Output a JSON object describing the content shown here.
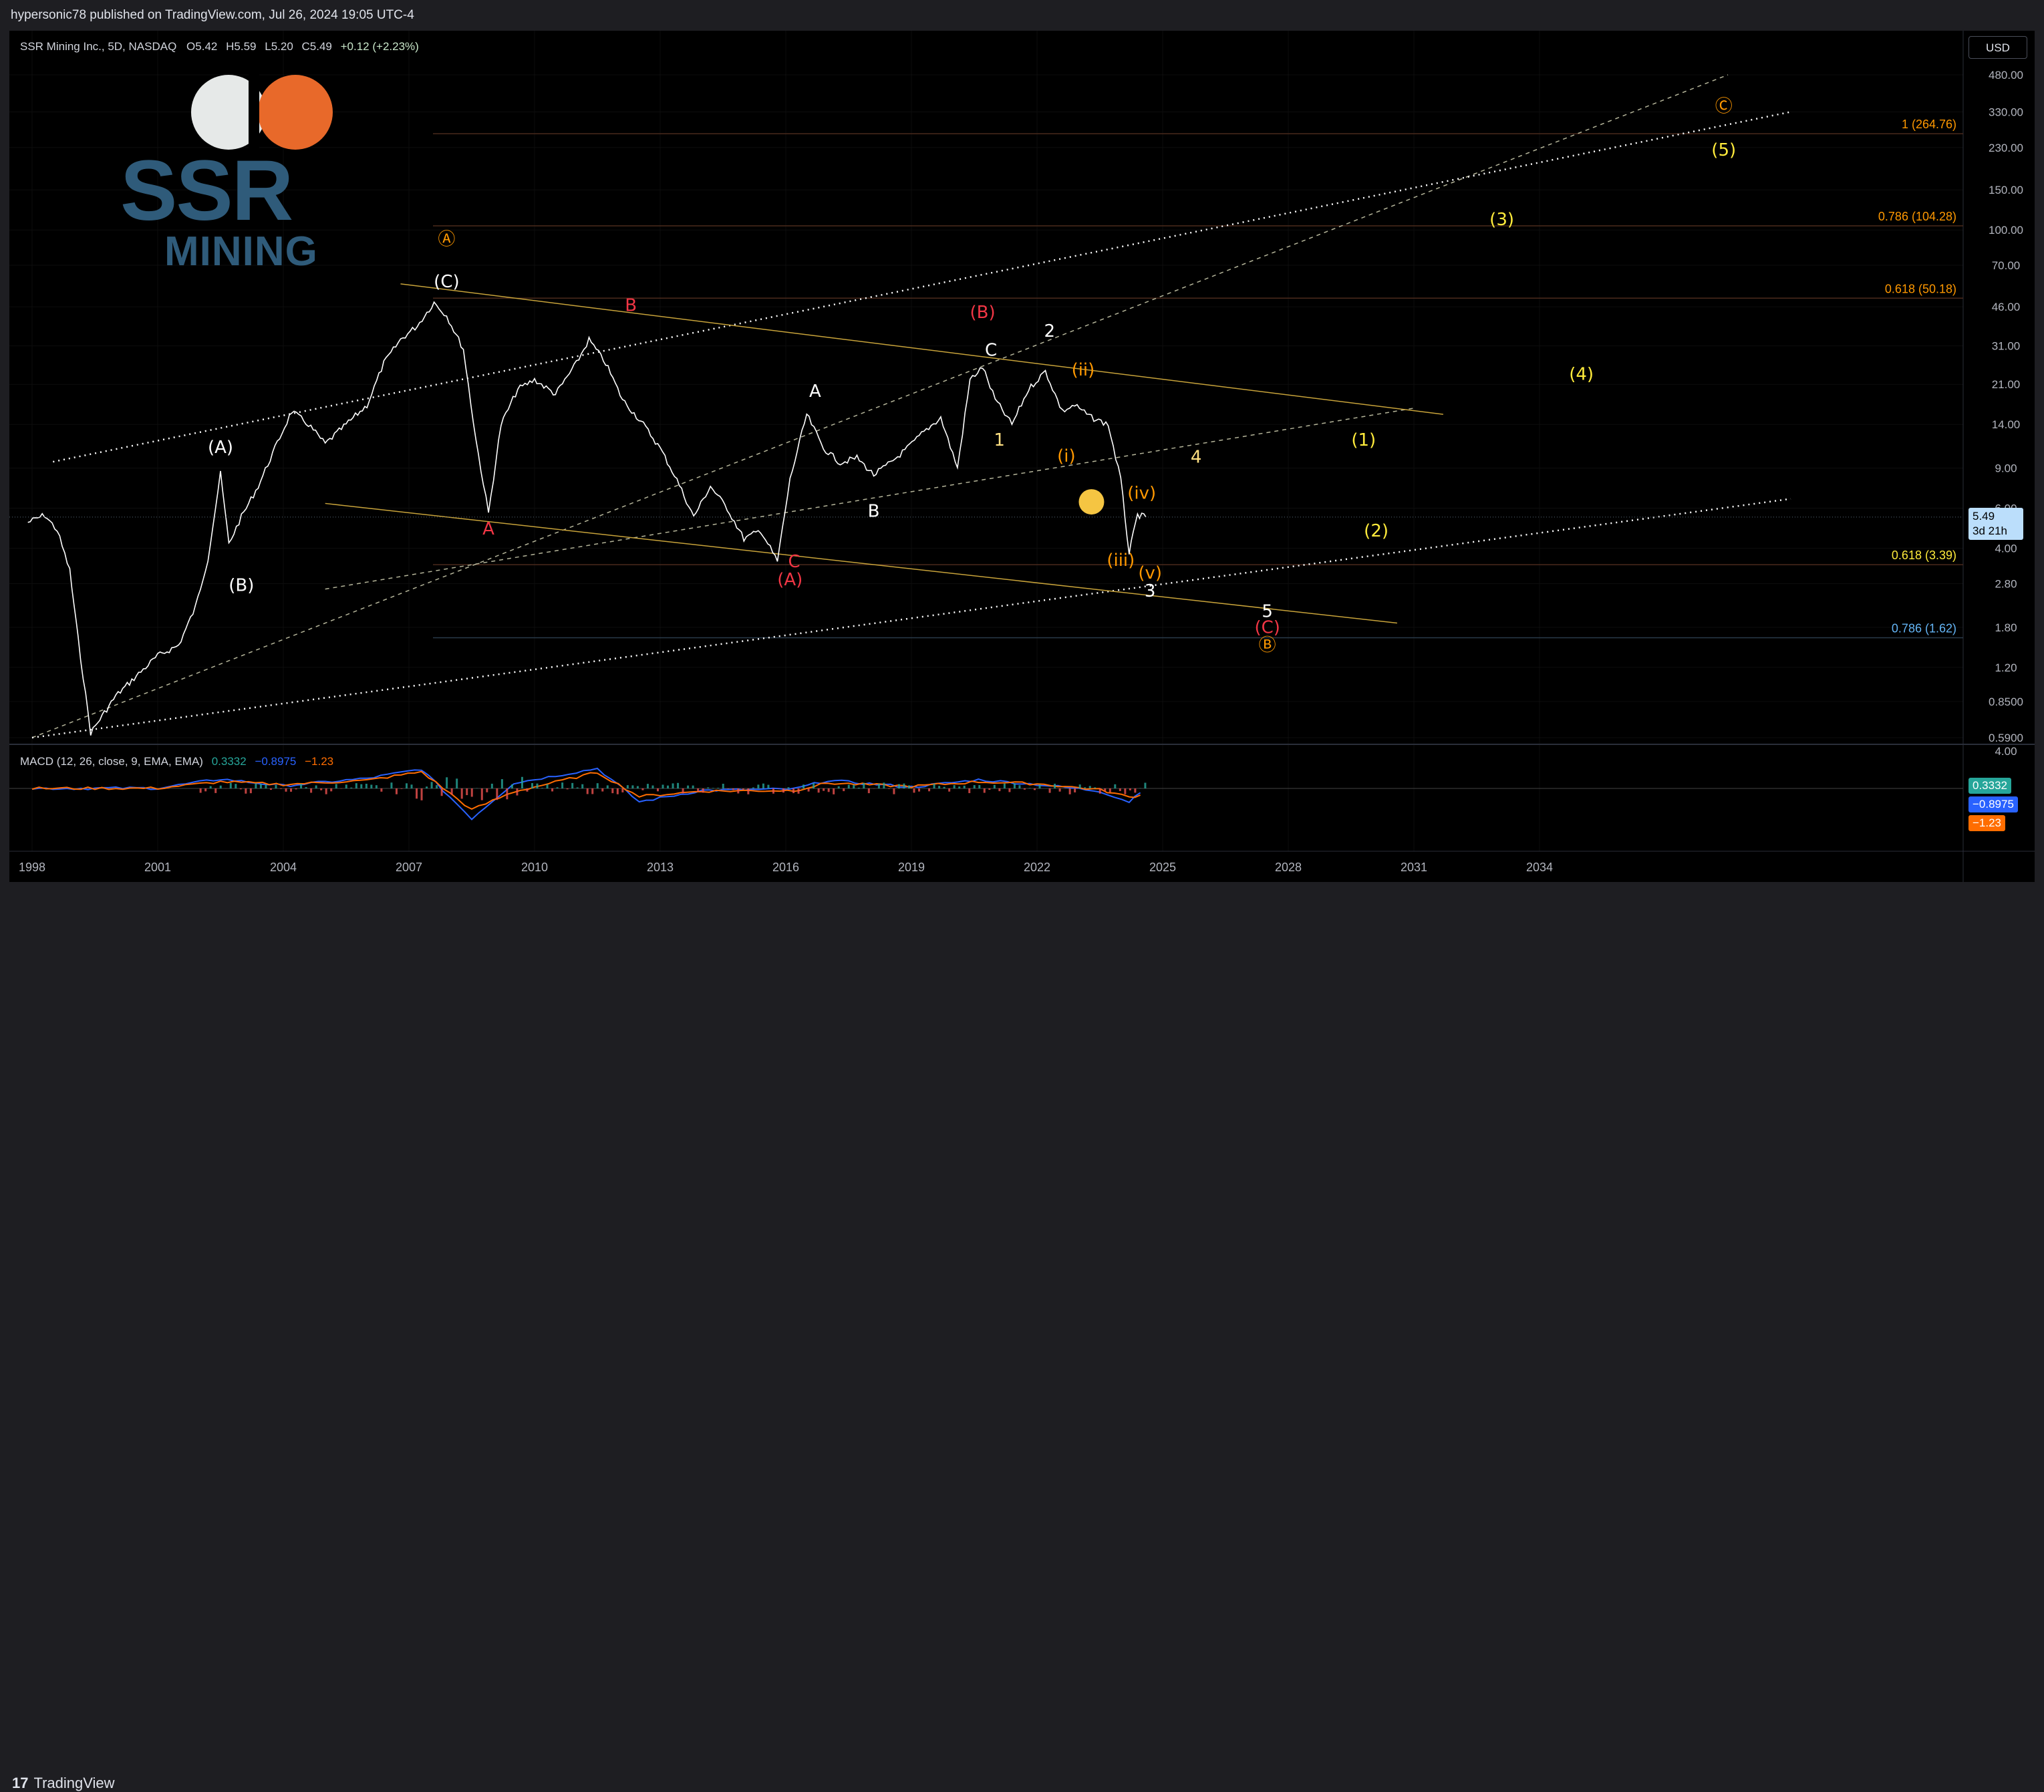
{
  "publisher_line": "hypersonic78 published on TradingView.com, Jul 26, 2024 19:05 UTC-4",
  "footer_brand": "TradingView",
  "logo": {
    "ssr": "SSR",
    "mining": "MINING"
  },
  "currency_button": "USD",
  "legend": {
    "symbol": "SSR Mining Inc., 5D, NASDAQ",
    "o_label": "O",
    "o": "5.42",
    "h_label": "H",
    "h": "5.59",
    "l_label": "L",
    "l": "5.20",
    "c_label": "C",
    "c": "5.49",
    "change": "+0.12 (+2.23%)"
  },
  "macd_legend": {
    "name": "MACD (12, 26, close, 9, EMA, EMA)",
    "v1": "0.3332",
    "v2": "−0.8975",
    "v3": "−1.23"
  },
  "price_badge": {
    "price": "5.49",
    "countdown": "3d 21h"
  },
  "macd_badges": [
    "0.3332",
    "−0.8975",
    "−1.23"
  ],
  "colors": {
    "bg": "#000000",
    "price": "#ffffff",
    "yellow": "#ffeb3b",
    "orange": "#ff9800",
    "red": "#f23645",
    "fib_blue": "#64b5f6",
    "channel": "#c8a33a"
  },
  "chart_data": [
    {
      "type": "line",
      "scale": "log",
      "title": "SSR Mining Inc., 5D, NASDAQ",
      "x_ticks": [
        "1998",
        "2001",
        "2004",
        "2007",
        "2010",
        "2013",
        "2016",
        "2019",
        "2022",
        "2025",
        "2028",
        "2031",
        "2034"
      ],
      "y_ticks": [
        "480.00",
        "330.00",
        "230.00",
        "150.00",
        "100.00",
        "70.00",
        "46.00",
        "31.00",
        "21.00",
        "14.00",
        "9.00",
        "6.00",
        "4.00",
        "2.80",
        "1.80",
        "1.20",
        "0.8500",
        "0.5900"
      ],
      "ylim": [
        0.55,
        560
      ],
      "series": [
        {
          "name": "SSR Mining Inc., 5D, NASDAQ",
          "x": [
            1997.9,
            1998.3,
            1998.6,
            1998.9,
            1999.1,
            1999.4,
            2000.0,
            2000.6,
            2001.0,
            2001.5,
            2001.9,
            2002.2,
            2002.5,
            2002.7,
            2003.0,
            2003.4,
            2003.8,
            2004.2,
            2004.6,
            2005.0,
            2005.5,
            2006.0,
            2006.4,
            2006.8,
            2007.2,
            2007.6,
            2007.9,
            2008.3,
            2008.6,
            2008.9,
            2009.2,
            2009.6,
            2010.0,
            2010.5,
            2011.0,
            2011.3,
            2011.7,
            2012.1,
            2012.6,
            2013.0,
            2013.4,
            2013.8,
            2014.2,
            2014.6,
            2015.0,
            2015.4,
            2015.8,
            2016.1,
            2016.5,
            2016.9,
            2017.3,
            2017.7,
            2018.1,
            2018.5,
            2018.9,
            2019.3,
            2019.7,
            2020.1,
            2020.4,
            2020.7,
            2021.0,
            2021.4,
            2021.8,
            2022.2,
            2022.6,
            2022.9,
            2023.3,
            2023.7,
            2024.0,
            2024.2,
            2024.4,
            2024.6
          ],
          "values": [
            5.2,
            5.6,
            4.8,
            3.2,
            1.6,
            0.62,
            0.9,
            1.15,
            1.35,
            1.5,
            2.2,
            3.6,
            8.5,
            4.2,
            5.5,
            7.5,
            11,
            16,
            14,
            11.5,
            14,
            17,
            26,
            33,
            38,
            48,
            42,
            30,
            12,
            5.7,
            14,
            20,
            22,
            19,
            26,
            33,
            26,
            18,
            14,
            11,
            8,
            5.5,
            7.5,
            6,
            4.4,
            4.8,
            3.5,
            8,
            15.5,
            11,
            9.5,
            10,
            8.4,
            9.5,
            11,
            13,
            15,
            9,
            22,
            25,
            18,
            14,
            20,
            24,
            16,
            17,
            15,
            14,
            8,
            3.8,
            5.6,
            5.49
          ]
        }
      ],
      "wave_labels": [
        {
          "text": "(A)",
          "color": "#ffffff",
          "x": 2002.5,
          "y": 10.5
        },
        {
          "text": "(B)",
          "color": "#ffffff",
          "x": 2003.0,
          "y": 2.6
        },
        {
          "text": "(C)",
          "color": "#ffffff",
          "x": 2007.9,
          "y": 56
        },
        {
          "text": "Ⓐ",
          "color": "#ff9800",
          "x": 2007.9,
          "y": 86
        },
        {
          "text": "A",
          "color": "#f23645",
          "x": 2008.9,
          "y": 4.6
        },
        {
          "text": "B",
          "color": "#f23645",
          "x": 2012.3,
          "y": 44
        },
        {
          "text": "(A)",
          "color": "#f23645",
          "x": 2016.1,
          "y": 2.75
        },
        {
          "text": "C",
          "color": "#f23645",
          "x": 2016.2,
          "y": 3.3
        },
        {
          "text": "A",
          "color": "#ffffff",
          "x": 2016.7,
          "y": 18.5
        },
        {
          "text": "B",
          "color": "#ffffff",
          "x": 2018.1,
          "y": 5.5
        },
        {
          "text": "(B)",
          "color": "#f23645",
          "x": 2020.7,
          "y": 41
        },
        {
          "text": "C",
          "color": "#ffffff",
          "x": 2020.9,
          "y": 28
        },
        {
          "text": "2",
          "color": "#ffffff",
          "x": 2022.3,
          "y": 34
        },
        {
          "text": "1",
          "color": "#ffe082",
          "x": 2021.1,
          "y": 11.3
        },
        {
          "text": "(ii)",
          "color": "#ff9800",
          "x": 2023.1,
          "y": 23
        },
        {
          "text": "(i)",
          "color": "#ff9800",
          "x": 2022.7,
          "y": 9.6
        },
        {
          "text": "(iv)",
          "color": "#ff9800",
          "x": 2024.5,
          "y": 6.6
        },
        {
          "text": "(iii)",
          "color": "#ff9800",
          "x": 2024.0,
          "y": 3.35
        },
        {
          "text": "(v)",
          "color": "#ff9800",
          "x": 2024.7,
          "y": 2.95
        },
        {
          "text": "3",
          "color": "#ffffff",
          "x": 2024.7,
          "y": 2.45
        },
        {
          "text": "4",
          "color": "#ffe082",
          "x": 2025.8,
          "y": 9.5
        },
        {
          "text": "5",
          "color": "#ffffff",
          "x": 2027.5,
          "y": 2.0
        },
        {
          "text": "(C)",
          "color": "#f23645",
          "x": 2027.5,
          "y": 1.7
        },
        {
          "text": "Ⓑ",
          "color": "#ff9800",
          "x": 2027.5,
          "y": 1.42
        },
        {
          "text": "(1)",
          "color": "#ffeb3b",
          "x": 2029.8,
          "y": 11.3
        },
        {
          "text": "(2)",
          "color": "#ffeb3b",
          "x": 2030.1,
          "y": 4.5
        },
        {
          "text": "(3)",
          "color": "#ffeb3b",
          "x": 2033.1,
          "y": 105
        },
        {
          "text": "(4)",
          "color": "#ffeb3b",
          "x": 2035.0,
          "y": 22
        },
        {
          "text": "(5)",
          "color": "#ffeb3b",
          "x": 2038.4,
          "y": 212
        },
        {
          "text": "Ⓒ",
          "color": "#ff9800",
          "x": 2038.4,
          "y": 330
        }
      ],
      "fib_levels": [
        {
          "text": "1 (264.76)",
          "color": "#ff9800",
          "value": 264.76
        },
        {
          "text": "0.786 (104.28)",
          "color": "#ff9800",
          "value": 104.28
        },
        {
          "text": "0.618 (50.18)",
          "color": "#ff9800",
          "value": 50.18
        },
        {
          "text": "0.618 (3.39)",
          "color": "#ffeb3b",
          "value": 3.39
        },
        {
          "text": "0.786 (1.62)",
          "color": "#64b5f6",
          "value": 1.62
        }
      ]
    },
    {
      "type": "line",
      "title": "MACD (12, 26, close, 9, EMA, EMA)",
      "x_ticks": [
        "1998",
        "2001",
        "2004",
        "2007",
        "2010",
        "2013",
        "2016",
        "2019",
        "2022",
        "2025",
        "2028",
        "2031",
        "2034"
      ],
      "y_ticks": [
        "4.00"
      ],
      "series": [
        {
          "name": "MACD",
          "x": [
            1998,
            2001,
            2002.5,
            2004,
            2006,
            2007.3,
            2008.5,
            2009.5,
            2011.5,
            2012.5,
            2014,
            2016.2,
            2017,
            2019,
            2020.6,
            2022,
            2023.5,
            2024.2,
            2024.6
          ],
          "values": [
            0,
            0.05,
            1.4,
            0.4,
            1.5,
            2.9,
            -4.5,
            0.8,
            3.0,
            -2.0,
            -0.3,
            -0.1,
            1.2,
            0.2,
            1.3,
            0.6,
            -0.4,
            -2.0,
            0.3332
          ]
        },
        {
          "name": "Signal",
          "x": [
            1998,
            2001,
            2002.5,
            2004,
            2006,
            2007.3,
            2008.5,
            2009.5,
            2011.5,
            2012.5,
            2014,
            2016.2,
            2017,
            2019,
            2020.6,
            2022,
            2023.5,
            2024.2,
            2024.6
          ],
          "values": [
            0,
            0.03,
            1.0,
            0.6,
            1.2,
            2.5,
            -3.2,
            -0.5,
            2.4,
            -1.2,
            -0.4,
            -0.3,
            0.8,
            0.3,
            1.0,
            0.7,
            -0.2,
            -1.3,
            -0.8975
          ]
        }
      ]
    }
  ]
}
